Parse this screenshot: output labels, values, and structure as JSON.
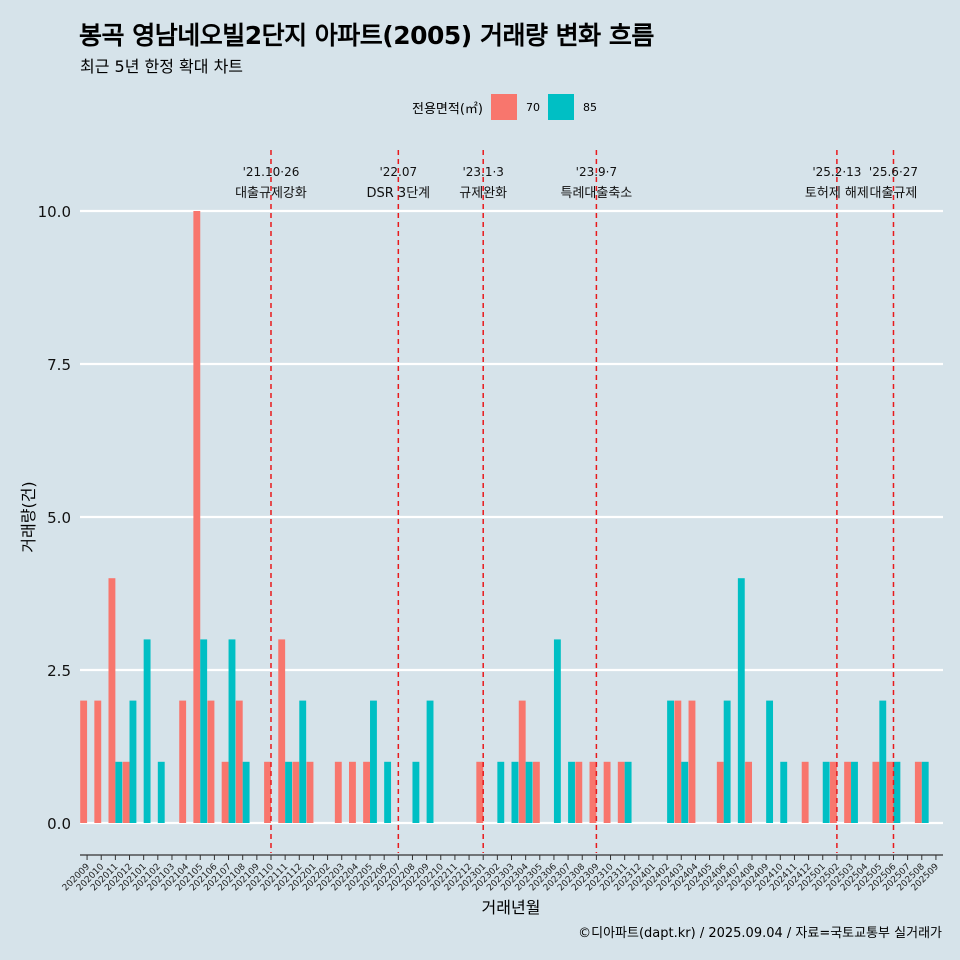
{
  "title": "봉곡 영남네오빌2단지 아파트(2005) 거래량 변화 흐름",
  "subtitle": "최근 5년 한정 확대 차트",
  "legend": {
    "title": "전용면적(㎡)",
    "items": [
      {
        "label": "70",
        "color": "#f8766d"
      },
      {
        "label": "85",
        "color": "#00bfc4"
      }
    ]
  },
  "source": "©디아파트(dapt.kr) / 2025.09.04 / 자료=국토교통부 실거래가",
  "chart_data": {
    "type": "bar",
    "xlabel": "거래년월",
    "ylabel": "거래량(건)",
    "ylim": [
      0,
      10
    ],
    "yticks": [
      "0.0",
      "2.5",
      "5.0",
      "7.5",
      "10.0"
    ],
    "categories": [
      "202009",
      "202010",
      "202011",
      "202012",
      "202101",
      "202102",
      "202103",
      "202104",
      "202105",
      "202106",
      "202107",
      "202108",
      "202109",
      "202110",
      "202111",
      "202112",
      "202201",
      "202202",
      "202203",
      "202204",
      "202205",
      "202206",
      "202207",
      "202208",
      "202209",
      "202210",
      "202211",
      "202212",
      "202301",
      "202302",
      "202303",
      "202304",
      "202305",
      "202306",
      "202307",
      "202308",
      "202309",
      "202310",
      "202311",
      "202312",
      "202401",
      "202402",
      "202403",
      "202404",
      "202405",
      "202406",
      "202407",
      "202408",
      "202409",
      "202410",
      "202411",
      "202412",
      "202501",
      "202502",
      "202503",
      "202504",
      "202505",
      "202506",
      "202507",
      "202508",
      "202509"
    ],
    "series": [
      {
        "name": "70",
        "color": "#f8766d",
        "values": [
          2,
          2,
          4,
          1,
          0,
          0,
          0,
          2,
          10,
          2,
          1,
          2,
          0,
          1,
          3,
          1,
          1,
          0,
          1,
          1,
          1,
          0,
          0,
          0,
          0,
          0,
          0,
          0,
          1,
          0,
          0,
          2,
          1,
          0,
          0,
          1,
          1,
          1,
          1,
          0,
          0,
          0,
          2,
          2,
          0,
          1,
          0,
          1,
          0,
          0,
          0,
          1,
          0,
          1,
          1,
          0,
          1,
          1,
          0,
          1,
          0
        ]
      },
      {
        "name": "85",
        "color": "#00bfc4",
        "values": [
          0,
          0,
          1,
          2,
          3,
          1,
          0,
          0,
          3,
          0,
          3,
          1,
          0,
          0,
          1,
          2,
          0,
          0,
          0,
          0,
          2,
          1,
          0,
          1,
          2,
          0,
          0,
          0,
          0,
          1,
          1,
          1,
          0,
          3,
          1,
          0,
          0,
          0,
          1,
          0,
          0,
          2,
          1,
          0,
          0,
          2,
          4,
          0,
          2,
          1,
          0,
          0,
          1,
          0,
          1,
          0,
          2,
          1,
          0,
          1,
          0
        ]
      }
    ],
    "events": [
      {
        "date": "'21.10·26",
        "label": "대출규제강화",
        "month": "202110"
      },
      {
        "date": "'22.07",
        "label": "DSR 3단계",
        "month": "202207"
      },
      {
        "date": "'23.1·3",
        "label": "규제완화",
        "month": "202301"
      },
      {
        "date": "'23.9·7",
        "label": "특례대출축소",
        "month": "202309"
      },
      {
        "date": "'25.2·13",
        "label": "토허제 해제",
        "month": "202502"
      },
      {
        "date": "'25.6·27",
        "label": "대출규제",
        "month": "202506"
      }
    ],
    "grid": true,
    "legend_position": "top"
  }
}
